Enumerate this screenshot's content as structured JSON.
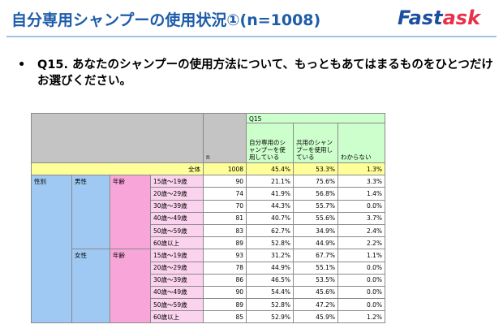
{
  "header": {
    "title": "自分専用シャンプーの使用状況①(n=1008)",
    "logo": {
      "parts": [
        "Fast",
        "ask"
      ]
    }
  },
  "question": {
    "text": "Q15. あなたのシャンプーの使用方法について、もっともあてはまるものをひとつだけお選びください。"
  },
  "table": {
    "q_label": "Q15",
    "n_label": "n",
    "columns": [
      "自分専用のシャンプーを使用している",
      "共用のシャンプーを使用している",
      "わからない"
    ],
    "total": {
      "label": "全体",
      "n": 1008,
      "values": [
        "45.4%",
        "53.3%",
        "1.3%"
      ]
    },
    "sex_label": "性別",
    "groups": [
      {
        "gender": "男性",
        "age_label": "年齢",
        "rows": [
          {
            "age": "15歳～19歳",
            "n": 90,
            "values": [
              "21.1%",
              "75.6%",
              "3.3%"
            ]
          },
          {
            "age": "20歳～29歳",
            "n": 74,
            "values": [
              "41.9%",
              "56.8%",
              "1.4%"
            ]
          },
          {
            "age": "30歳～39歳",
            "n": 70,
            "values": [
              "44.3%",
              "55.7%",
              "0.0%"
            ]
          },
          {
            "age": "40歳～49歳",
            "n": 81,
            "values": [
              "40.7%",
              "55.6%",
              "3.7%"
            ]
          },
          {
            "age": "50歳～59歳",
            "n": 83,
            "values": [
              "62.7%",
              "34.9%",
              "2.4%"
            ]
          },
          {
            "age": "60歳以上",
            "n": 89,
            "values": [
              "52.8%",
              "44.9%",
              "2.2%"
            ]
          }
        ]
      },
      {
        "gender": "女性",
        "age_label": "年齢",
        "rows": [
          {
            "age": "15歳～19歳",
            "n": 93,
            "values": [
              "31.2%",
              "67.7%",
              "1.1%"
            ]
          },
          {
            "age": "20歳～29歳",
            "n": 78,
            "values": [
              "44.9%",
              "55.1%",
              "0.0%"
            ]
          },
          {
            "age": "30歳～39歳",
            "n": 86,
            "values": [
              "46.5%",
              "53.5%",
              "0.0%"
            ]
          },
          {
            "age": "40歳～49歳",
            "n": 90,
            "values": [
              "54.4%",
              "45.6%",
              "0.0%"
            ]
          },
          {
            "age": "50歳～59歳",
            "n": 89,
            "values": [
              "52.8%",
              "47.2%",
              "0.0%"
            ]
          },
          {
            "age": "60歳以上",
            "n": 85,
            "values": [
              "52.9%",
              "45.9%",
              "1.2%"
            ]
          }
        ]
      }
    ]
  }
}
